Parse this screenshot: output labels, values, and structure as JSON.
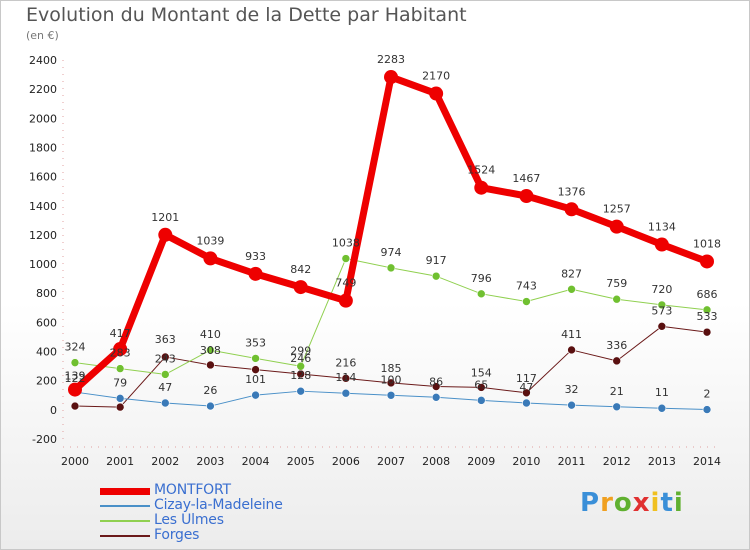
{
  "header": {
    "title": "Evolution du Montant de la Dette par Habitant",
    "subtitle": "(en €)"
  },
  "logo": {
    "text": "Proxiti"
  },
  "chart_data": {
    "type": "line",
    "title": "Evolution du Montant de la Dette par Habitant",
    "subtitle": "(en €)",
    "xlabel": "",
    "ylabel": "",
    "ylim": [
      -200,
      2400
    ],
    "yticks": [
      -200,
      0,
      200,
      400,
      600,
      800,
      1000,
      1200,
      1400,
      1600,
      1800,
      2000,
      2200,
      2400
    ],
    "categories": [
      "2000",
      "2001",
      "2002",
      "2003",
      "2004",
      "2005",
      "2006",
      "2007",
      "2008",
      "2009",
      "2010",
      "2011",
      "2012",
      "2013",
      "2014"
    ],
    "grid": false,
    "legend_position": "bottom-left",
    "series": [
      {
        "name": "Forges",
        "color": "#6b1a1a",
        "marker_color": "#5a1010",
        "width": 1,
        "marker": 4,
        "values": [
          26,
          19,
          363,
          308,
          276,
          246,
          216,
          185,
          160,
          154,
          117,
          411,
          336,
          573,
          533
        ],
        "labels": [
          "",
          "",
          "363",
          "308",
          "",
          "246",
          "216",
          "185",
          "",
          "154",
          "117",
          "411",
          "336",
          "573",
          "533"
        ],
        "label_offsets": [
          0,
          0,
          -14,
          -11,
          0,
          -12,
          -12,
          -11,
          0,
          -11,
          -11,
          -12,
          -12,
          -12,
          -12
        ]
      },
      {
        "name": "Les Ulmes",
        "color": "#90d050",
        "marker_color": "#70c030",
        "width": 1,
        "marker": 4,
        "values": [
          324,
          283,
          243,
          410,
          353,
          299,
          1038,
          974,
          917,
          796,
          743,
          827,
          759,
          720,
          686
        ],
        "labels": [
          "324",
          "283",
          "243",
          "410",
          "353",
          "299",
          "1038",
          "974",
          "917",
          "796",
          "743",
          "827",
          "759",
          "720",
          "686"
        ],
        "label_offsets": [
          -12,
          -12,
          -12,
          -12,
          -12,
          -12,
          -12,
          -12,
          -12,
          -12,
          -12,
          -12,
          -12,
          -12,
          -12
        ]
      },
      {
        "name": "Cizay-la-Madeleine",
        "color": "#4a90c8",
        "marker_color": "#3a7ab8",
        "width": 1,
        "marker": 4,
        "values": [
          122,
          79,
          47,
          26,
          101,
          128,
          114,
          100,
          86,
          65,
          47,
          32,
          21,
          11,
          2
        ],
        "labels": [
          "122",
          "79",
          "47",
          "26",
          "101",
          "128",
          "114",
          "100",
          "86",
          "65",
          "47",
          "32",
          "21",
          "11",
          "2"
        ],
        "label_offsets": [
          -10,
          -12,
          -12,
          -12,
          -12,
          -12,
          -12,
          -12,
          -12,
          -12,
          -12,
          -12,
          -12,
          -12,
          -12
        ]
      },
      {
        "name": "MONTFORT",
        "color": "#ee0000",
        "marker_color": "#ee0000",
        "width": 7,
        "marker": 7,
        "values": [
          139,
          417,
          1201,
          1039,
          933,
          842,
          749,
          2283,
          2170,
          1524,
          1467,
          1376,
          1257,
          1134,
          1018
        ],
        "labels": [
          "139",
          "417",
          "1201",
          "1039",
          "933",
          "842",
          "749",
          "2283",
          "2170",
          "1524",
          "1467",
          "1376",
          "1257",
          "1134",
          "1018"
        ],
        "label_offsets": [
          -10,
          -12,
          -14,
          -14,
          -14,
          -14,
          -14,
          -14,
          -14,
          -14,
          -14,
          -14,
          -14,
          -14,
          -14
        ]
      }
    ]
  },
  "legend": {
    "items": [
      {
        "label": "MONTFORT",
        "color": "#ee0000",
        "text_color": "#3a6fd0"
      },
      {
        "label": "Cizay-la-Madeleine",
        "color": "#4a90c8",
        "text_color": "#3a6fd0"
      },
      {
        "label": "Les Ulmes",
        "color": "#90d050",
        "text_color": "#3a6fd0"
      },
      {
        "label": "Forges",
        "color": "#6b1a1a",
        "text_color": "#3a6fd0"
      }
    ]
  }
}
